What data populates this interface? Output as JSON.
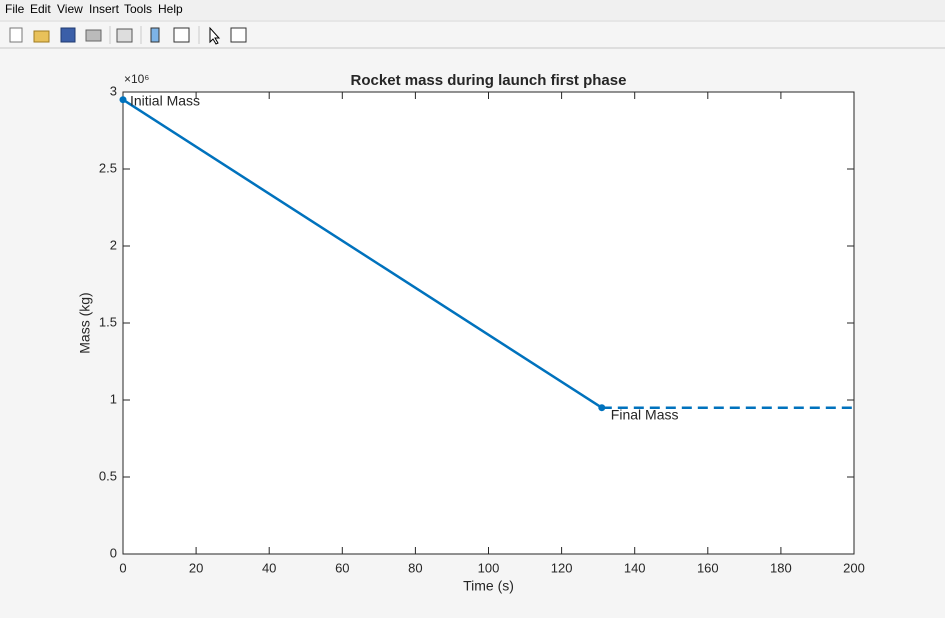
{
  "menu": [
    "File",
    "Edit",
    "View",
    "Insert",
    "Tools",
    "Help"
  ],
  "chart_data": {
    "type": "line",
    "title": "Rocket mass during launch first phase",
    "xlabel": "Time (s)",
    "ylabel": "Mass (kg)",
    "y_exponent_label": "×10⁶",
    "series": [
      {
        "x": [
          0,
          131
        ],
        "values": [
          2.95,
          0.95
        ],
        "color": "#0072bd",
        "style": "solid",
        "markers": true
      },
      {
        "x": [
          131,
          200
        ],
        "values": [
          0.95,
          0.95
        ],
        "color": "#0072bd",
        "style": "dashed",
        "markers": false
      }
    ],
    "annotations": [
      {
        "text": "Initial Mass"
      },
      {
        "text": "Final Mass"
      }
    ],
    "xlim": [
      0,
      200
    ],
    "xticks": [
      0,
      20,
      40,
      60,
      80,
      100,
      120,
      140,
      160,
      180,
      200
    ],
    "ylim": [
      0,
      3
    ],
    "yticks": [
      0,
      0.5,
      1,
      1.5,
      2,
      2.5,
      3
    ],
    "grid": false
  }
}
